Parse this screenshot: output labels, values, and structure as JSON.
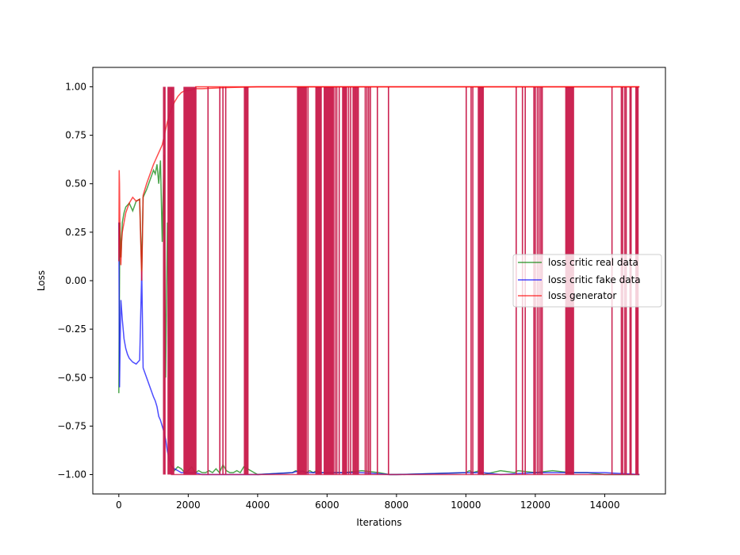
{
  "chart_data": {
    "type": "line",
    "title": "",
    "xlabel": "Iterations",
    "ylabel": "Loss",
    "xlim": [
      -750,
      15750
    ],
    "ylim": [
      -1.1,
      1.1
    ],
    "xticks": [
      0,
      2000,
      4000,
      6000,
      8000,
      10000,
      12000,
      14000
    ],
    "xtick_labels": [
      "0",
      "2000",
      "4000",
      "6000",
      "8000",
      "10000",
      "12000",
      "14000"
    ],
    "yticks": [
      -1.0,
      -0.75,
      -0.5,
      -0.25,
      0.0,
      0.25,
      0.5,
      0.75,
      1.0
    ],
    "ytick_labels": [
      "−1.00",
      "−0.75",
      "−0.50",
      "−0.25",
      "0.00",
      "0.25",
      "0.50",
      "0.75",
      "1.00"
    ],
    "grid": false,
    "legend_position": "center-right",
    "series": [
      {
        "name": "loss critic real data",
        "color": "#008000",
        "x": [
          0,
          30,
          60,
          100,
          150,
          200,
          300,
          400,
          500,
          600,
          660,
          700,
          800,
          900,
          1000,
          1050,
          1100,
          1150,
          1200,
          1250,
          1300,
          1350,
          1400,
          1500,
          1600,
          1700,
          1800,
          1900,
          2000,
          2100,
          2200,
          2300,
          2400,
          2500,
          2600,
          2700,
          2800,
          2900,
          3000,
          3100,
          3200,
          3300,
          3400,
          3500,
          3600,
          3700,
          3800,
          3900,
          4000,
          5000,
          5100,
          5200,
          5300,
          5400,
          5500,
          5600,
          5700,
          5800,
          5900,
          6000,
          6500,
          7000,
          7500,
          7800,
          8000,
          10000,
          10100,
          10200,
          10400,
          10500,
          11000,
          11400,
          11500,
          12000,
          12500,
          13000,
          13500,
          14000,
          14500,
          15000
        ],
        "y": [
          -0.58,
          0.3,
          0.12,
          0.3,
          0.35,
          0.38,
          0.4,
          0.36,
          0.41,
          0.42,
          0.05,
          0.43,
          0.47,
          0.52,
          0.57,
          0.55,
          0.6,
          0.5,
          0.62,
          0.2,
          0.65,
          -0.5,
          0.3,
          -0.95,
          -0.98,
          -0.96,
          -0.97,
          -0.99,
          -0.98,
          -0.96,
          -0.99,
          -0.98,
          -0.99,
          -0.99,
          -0.98,
          -0.99,
          -0.97,
          -0.99,
          -0.95,
          -0.98,
          -0.99,
          -0.99,
          -0.98,
          -0.99,
          -0.96,
          -0.97,
          -0.98,
          -0.99,
          -1.0,
          -0.99,
          -0.98,
          -0.99,
          -0.98,
          -0.99,
          -0.98,
          -0.99,
          -0.98,
          -0.99,
          -0.99,
          -0.99,
          -0.99,
          -0.98,
          -0.99,
          -1.0,
          -1.0,
          -0.99,
          -0.98,
          -0.99,
          -0.98,
          -1.0,
          -0.98,
          -0.99,
          -0.98,
          -0.99,
          -0.98,
          -0.99,
          -0.99,
          -1.0,
          -1.0,
          -1.0
        ]
      },
      {
        "name": "loss critic fake data",
        "color": "#0000ff",
        "x": [
          0,
          20,
          40,
          60,
          80,
          100,
          150,
          200,
          250,
          300,
          400,
          500,
          600,
          660,
          700,
          800,
          900,
          1000,
          1050,
          1100,
          1150,
          1200,
          1250,
          1300,
          1350,
          1400,
          1450,
          1500,
          1600,
          1700,
          1800,
          2000,
          2200,
          2400,
          3000,
          4000,
          5000,
          5200,
          5400,
          6000,
          7000,
          7800,
          8000,
          10000,
          10500,
          11000,
          12000,
          13000,
          14000,
          15000
        ],
        "y": [
          0.3,
          -0.55,
          -0.3,
          -0.1,
          -0.15,
          -0.2,
          -0.3,
          -0.35,
          -0.38,
          -0.4,
          -0.42,
          -0.43,
          -0.41,
          0.05,
          -0.45,
          -0.5,
          -0.55,
          -0.6,
          -0.62,
          -0.65,
          -0.7,
          -0.72,
          -0.75,
          -0.78,
          -0.82,
          -0.88,
          -0.92,
          -0.95,
          -0.97,
          -0.98,
          -0.99,
          -0.99,
          -0.99,
          -1.0,
          -1.0,
          -1.0,
          -0.99,
          -0.98,
          -0.99,
          -0.99,
          -0.99,
          -1.0,
          -1.0,
          -0.99,
          -0.99,
          -1.0,
          -0.99,
          -0.99,
          -0.99,
          -1.0
        ]
      },
      {
        "name": "loss generator",
        "color": "#ff0000",
        "x": [
          0,
          10,
          20,
          40,
          60,
          80,
          100,
          150,
          200,
          300,
          400,
          500,
          600,
          660,
          700,
          800,
          900,
          1000,
          1050,
          1100,
          1150,
          1200,
          1250,
          1300,
          1350,
          1400,
          1500,
          1600,
          1700,
          1800,
          1900,
          2000,
          2100,
          2200,
          2400,
          3000,
          4000,
          5000,
          6000,
          7000,
          8000,
          10000,
          10500,
          11000,
          12000,
          13000,
          14000,
          15000
        ],
        "y": [
          0.1,
          0.57,
          0.5,
          0.12,
          0.08,
          0.2,
          0.25,
          0.3,
          0.35,
          0.4,
          0.43,
          0.41,
          0.42,
          0.0,
          0.44,
          0.5,
          0.55,
          0.6,
          0.62,
          0.64,
          0.66,
          0.68,
          0.7,
          0.74,
          0.78,
          0.82,
          0.88,
          0.92,
          0.95,
          0.97,
          0.98,
          0.98,
          0.985,
          0.99,
          0.99,
          0.995,
          1.0,
          1.0,
          1.0,
          1.0,
          1.0,
          1.0,
          1.0,
          1.0,
          1.0,
          1.0,
          1.0,
          1.0
        ]
      }
    ],
    "overlap_color": "#c8194a",
    "oscillation_bands": [
      {
        "x0": 1290,
        "x1": 1330,
        "density": 3
      },
      {
        "x0": 1420,
        "x1": 1500,
        "density": 4
      },
      {
        "x0": 1520,
        "x1": 1580,
        "density": 3
      },
      {
        "x0": 1880,
        "x1": 2220,
        "density": 60
      },
      {
        "x0": 2560,
        "x1": 2580,
        "density": 1
      },
      {
        "x0": 2900,
        "x1": 2920,
        "density": 1
      },
      {
        "x0": 2990,
        "x1": 3010,
        "density": 1
      },
      {
        "x0": 3070,
        "x1": 3090,
        "density": 1
      },
      {
        "x0": 3620,
        "x1": 3720,
        "density": 6
      },
      {
        "x0": 5150,
        "x1": 5400,
        "density": 10
      },
      {
        "x0": 5440,
        "x1": 5460,
        "density": 1
      },
      {
        "x0": 5680,
        "x1": 5830,
        "density": 6
      },
      {
        "x0": 5920,
        "x1": 6180,
        "density": 10
      },
      {
        "x0": 6230,
        "x1": 6280,
        "density": 2
      },
      {
        "x0": 6340,
        "x1": 6360,
        "density": 1
      },
      {
        "x0": 6450,
        "x1": 6560,
        "density": 4
      },
      {
        "x0": 6620,
        "x1": 6680,
        "density": 2
      },
      {
        "x0": 6750,
        "x1": 6900,
        "density": 5
      },
      {
        "x0": 7100,
        "x1": 7250,
        "density": 4
      },
      {
        "x0": 7440,
        "x1": 7460,
        "density": 1
      },
      {
        "x0": 7760,
        "x1": 7780,
        "density": 1
      },
      {
        "x0": 10000,
        "x1": 10020,
        "density": 1
      },
      {
        "x0": 10150,
        "x1": 10200,
        "density": 2
      },
      {
        "x0": 10360,
        "x1": 10500,
        "density": 5
      },
      {
        "x0": 11440,
        "x1": 11460,
        "density": 1
      },
      {
        "x0": 11620,
        "x1": 11640,
        "density": 1
      },
      {
        "x0": 11700,
        "x1": 11720,
        "density": 1
      },
      {
        "x0": 11960,
        "x1": 12000,
        "density": 2
      },
      {
        "x0": 12060,
        "x1": 12110,
        "density": 2
      },
      {
        "x0": 12160,
        "x1": 12200,
        "density": 2
      },
      {
        "x0": 12880,
        "x1": 13100,
        "density": 14
      },
      {
        "x0": 14200,
        "x1": 14220,
        "density": 1
      },
      {
        "x0": 14480,
        "x1": 14520,
        "density": 2
      },
      {
        "x0": 14580,
        "x1": 14620,
        "density": 2
      },
      {
        "x0": 14730,
        "x1": 14760,
        "density": 2
      },
      {
        "x0": 14900,
        "x1": 14960,
        "density": 3
      }
    ]
  }
}
